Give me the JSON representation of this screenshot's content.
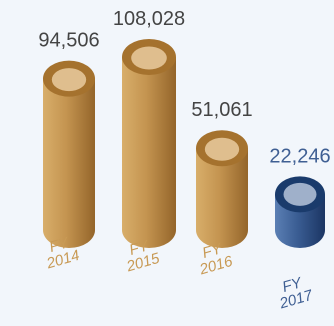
{
  "chart_data": {
    "type": "bar",
    "categories": [
      {
        "line1": "FY",
        "line2": "2014"
      },
      {
        "line1": "FY",
        "line2": "2015"
      },
      {
        "line1": "FY",
        "line2": "2016"
      },
      {
        "line1": "FY",
        "line2": "2017"
      }
    ],
    "values": [
      94506,
      108028,
      51061,
      22246
    ],
    "data_labels": [
      "94,506",
      "108,028",
      "51,061",
      "22,246"
    ],
    "title": "",
    "xlabel": "",
    "ylabel": "",
    "grid": false,
    "legend": "none",
    "colors": {
      "gold_light": "#d8ae6a",
      "gold_mid": "#c49450",
      "gold_dark": "#94652a",
      "gold_top_rim": "#a5722e",
      "gold_top_face": "#e6c799",
      "blue_light": "#5b7fb4",
      "blue_mid": "#3a5d93",
      "blue_dark": "#1b3563",
      "blue_top_rim": "#1a3b6c",
      "blue_top_face": "#9fb0ca",
      "label_default": "#444444",
      "label_highlight": "#3f5f93",
      "category_gold": "#c89a55",
      "category_blue": "#3f5f93",
      "background": "#f2f6fb"
    },
    "highlight_index": 3
  }
}
